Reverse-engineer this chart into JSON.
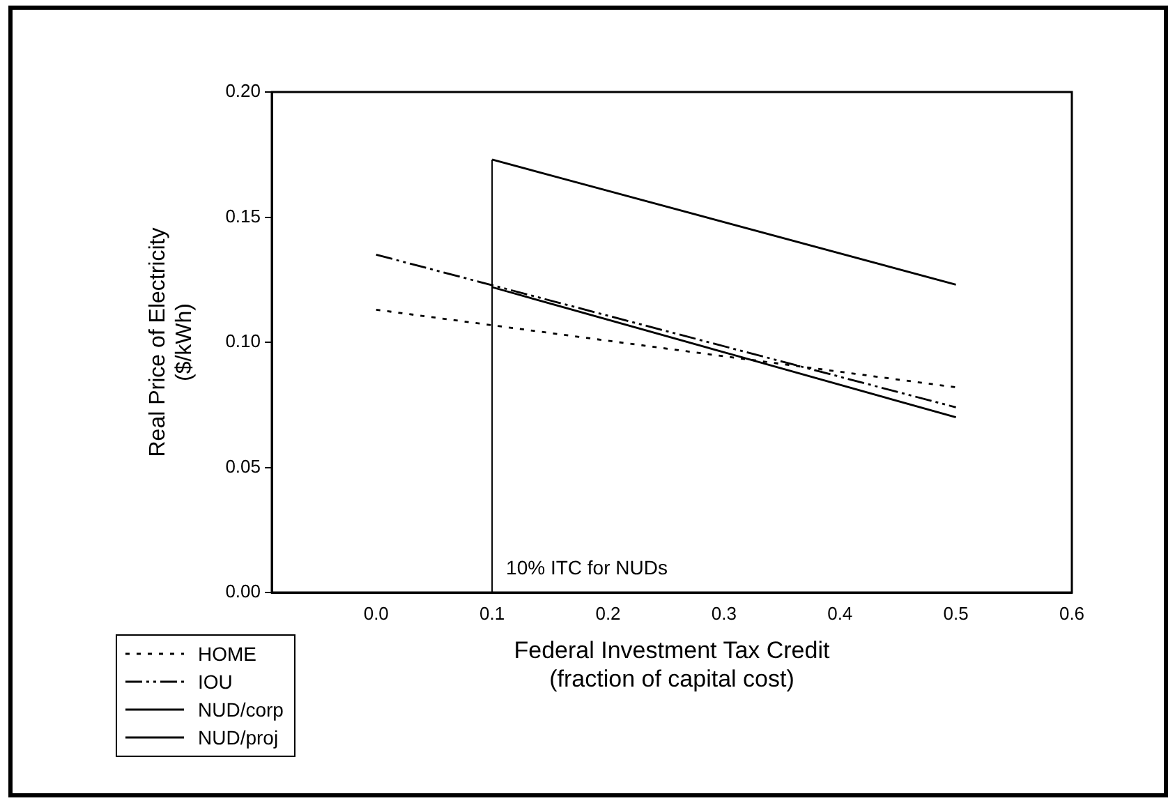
{
  "chart_data": {
    "type": "line",
    "xlabel": "Federal Investment Tax Credit\n(fraction of capital cost)",
    "ylabel": "Real Price of Electricity\n($/kWh)",
    "series": [
      {
        "name": "HOME",
        "color": "#000000",
        "line_style": "dotted",
        "x": [
          0.0,
          0.5
        ],
        "values": [
          0.113,
          0.082
        ]
      },
      {
        "name": "IOU",
        "color": "#000000",
        "line_style": "dashed",
        "x": [
          0.0,
          0.5
        ],
        "values": [
          0.135,
          0.074
        ]
      },
      {
        "name": "NUD/corp",
        "color": "#000000",
        "line_style": "solid",
        "x": [
          0.1,
          0.5
        ],
        "values": [
          0.122,
          0.07
        ]
      },
      {
        "name": "NUD/proj",
        "color": "#000000",
        "line_style": "solid",
        "x": [
          0.1,
          0.5
        ],
        "values": [
          0.173,
          0.123
        ]
      }
    ],
    "xlim": [
      -0.09,
      0.6
    ],
    "xticks": [
      {
        "value": 0.0,
        "label": "0.0"
      },
      0.1,
      0.2,
      0.3,
      0.4,
      0.5,
      0.6
    ],
    "ylim": [
      0,
      0.2
    ],
    "yticks": [
      {
        "value": 0,
        "label": "0.00"
      },
      0.05,
      {
        "value": 0.1,
        "label": "0.10"
      },
      0.15,
      {
        "value": 0.2,
        "label": "0.20"
      }
    ],
    "ref_lines": [
      {
        "axis": "x",
        "value": 0.1,
        "label": "10% ITC for NUDs",
        "color": "#000000"
      }
    ],
    "grid": false,
    "legend": "bottom left",
    "marker": "none"
  }
}
